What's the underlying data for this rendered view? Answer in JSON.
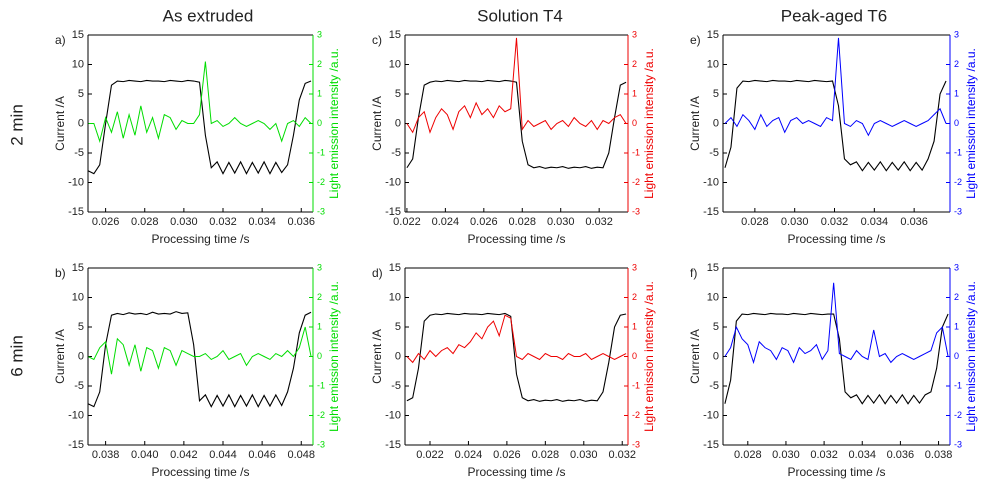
{
  "column_titles": [
    "As extruded",
    "Solution T4",
    "Peak-aged T6"
  ],
  "row_labels": [
    "2 min",
    "6 min"
  ],
  "chart_data": [
    {
      "type": "line",
      "label": "a)",
      "xlabel": "Processing time /s",
      "ylabel": "Current /A",
      "y2label": "Light emission intensity /a.u.",
      "x": [
        0.0251,
        0.0254,
        0.0257,
        0.026,
        0.0263,
        0.0266,
        0.0269,
        0.0272,
        0.0275,
        0.0278,
        0.0281,
        0.0284,
        0.0287,
        0.029,
        0.0293,
        0.0296,
        0.0299,
        0.0302,
        0.0305,
        0.0308,
        0.0311,
        0.0314,
        0.0317,
        0.032,
        0.0323,
        0.0326,
        0.0329,
        0.0332,
        0.0335,
        0.0338,
        0.0341,
        0.0344,
        0.0347,
        0.035,
        0.0353,
        0.0356,
        0.0359,
        0.0362,
        0.0365
      ],
      "series": [
        {
          "color": "#000000",
          "values": [
            -8,
            -8.5,
            -7,
            0,
            6.5,
            7.2,
            7.1,
            7.3,
            7.2,
            7.1,
            7.3,
            7.2,
            7.2,
            7.1,
            7.3,
            7.2,
            7.1,
            7.3,
            7.2,
            7,
            -2,
            -7.5,
            -6.5,
            -8.5,
            -6.6,
            -8.4,
            -6.5,
            -8.5,
            -6.6,
            -8.4,
            -6.5,
            -8.5,
            -6.6,
            -8.3,
            -7,
            -2,
            4,
            6.8,
            7.2
          ]
        },
        {
          "color": "#00dd00",
          "axis": "y2",
          "values": [
            0,
            0,
            -0.6,
            0.2,
            -0.3,
            0.4,
            -0.5,
            0.3,
            -0.4,
            0.6,
            -0.3,
            0.2,
            -0.5,
            0.3,
            0.2,
            -0.2,
            0.1,
            0,
            0,
            0.3,
            2.1,
            0,
            0.1,
            -0.1,
            0,
            0.2,
            0,
            -0.1,
            0,
            0.1,
            0,
            -0.2,
            0,
            -0.6,
            0,
            0.1,
            -0.1,
            0.2,
            0
          ]
        }
      ],
      "xlim": [
        0.0251,
        0.0366
      ],
      "xticks": [
        0.026,
        0.028,
        {
          "value": 0.03,
          "label": "0.030"
        },
        0.032,
        0.034,
        0.036
      ],
      "ylim": [
        -15,
        15
      ],
      "yticks": [
        -15,
        -10,
        -5,
        0,
        5,
        10,
        15
      ],
      "y2lim": [
        -3,
        3
      ],
      "y2ticks": [
        -3,
        -2,
        -1,
        0,
        1,
        2,
        3
      ]
    },
    {
      "type": "line",
      "label": "c)",
      "xlabel": "Processing time /s",
      "ylabel": "Current /A",
      "y2label": "Light emission intensity /a.u.",
      "x": [
        0.022,
        0.0223,
        0.0226,
        0.0229,
        0.0232,
        0.0235,
        0.0238,
        0.0241,
        0.0244,
        0.0247,
        0.025,
        0.0253,
        0.0256,
        0.0259,
        0.0262,
        0.0265,
        0.0268,
        0.0271,
        0.0274,
        0.0277,
        0.028,
        0.0283,
        0.0286,
        0.0289,
        0.0292,
        0.0295,
        0.0298,
        0.0301,
        0.0304,
        0.0307,
        0.031,
        0.0313,
        0.0316,
        0.0319,
        0.0322,
        0.0325,
        0.0328,
        0.0331,
        0.0334
      ],
      "series": [
        {
          "color": "#000000",
          "values": [
            -7.5,
            -6,
            1,
            6.5,
            7,
            7.2,
            7.1,
            7.3,
            7.2,
            7.1,
            7.3,
            7.2,
            7.2,
            7.1,
            7.3,
            7.2,
            7.1,
            7.3,
            7.2,
            7,
            -3,
            -7,
            -7.5,
            -7.3,
            -7.6,
            -7.4,
            -7.5,
            -7.3,
            -7.6,
            -7.4,
            -7.5,
            -7.3,
            -7.6,
            -7.4,
            -7.5,
            -5,
            1,
            6.5,
            7
          ]
        },
        {
          "color": "#ee0000",
          "axis": "y2",
          "values": [
            0,
            -0.3,
            0.2,
            0.4,
            -0.3,
            0.2,
            0.5,
            0.3,
            -0.2,
            0.4,
            0.6,
            0.2,
            0.7,
            0.3,
            0.5,
            0.2,
            0.6,
            0.4,
            0.5,
            2.9,
            -0.2,
            0.1,
            -0.1,
            0,
            0.1,
            -0.2,
            0,
            0.1,
            -0.1,
            0.2,
            0,
            -0.1,
            0.1,
            -0.2,
            0.1,
            0,
            0.2,
            0.3,
            0
          ]
        }
      ],
      "xlim": [
        0.0219,
        0.0335
      ],
      "xticks": [
        0.022,
        0.024,
        0.026,
        0.028,
        {
          "value": 0.03,
          "label": "0.030"
        },
        0.032
      ],
      "ylim": [
        -15,
        15
      ],
      "yticks": [
        -15,
        -10,
        -5,
        0,
        5,
        10,
        15
      ],
      "y2lim": [
        -3,
        3
      ],
      "y2ticks": [
        -3,
        -2,
        -1,
        0,
        1,
        2,
        3
      ]
    },
    {
      "type": "line",
      "label": "e)",
      "xlabel": "Processing time /s",
      "ylabel": "Current /A",
      "y2label": "Light emission intensity /a.u.",
      "x": [
        0.0265,
        0.0268,
        0.0271,
        0.0274,
        0.0277,
        0.028,
        0.0283,
        0.0286,
        0.0289,
        0.0292,
        0.0295,
        0.0298,
        0.0301,
        0.0304,
        0.0307,
        0.031,
        0.0313,
        0.0316,
        0.0319,
        0.0322,
        0.0325,
        0.0328,
        0.0331,
        0.0334,
        0.0337,
        0.034,
        0.0343,
        0.0346,
        0.0349,
        0.0352,
        0.0355,
        0.0358,
        0.0361,
        0.0364,
        0.0367,
        0.037,
        0.0373,
        0.0376
      ],
      "series": [
        {
          "color": "#000000",
          "values": [
            -7.5,
            -4,
            6,
            7.2,
            7.1,
            7.3,
            7.2,
            7.1,
            7.3,
            7.2,
            7.2,
            7.1,
            7.3,
            7.2,
            7.1,
            7.3,
            7.2,
            7.1,
            7.2,
            3,
            -6,
            -7,
            -6.5,
            -8,
            -6.6,
            -7.9,
            -6.5,
            -8,
            -6.6,
            -7.9,
            -6.5,
            -8,
            -6.6,
            -7.9,
            -6,
            -3,
            5,
            7.2
          ]
        },
        {
          "color": "#0000ff",
          "axis": "y2",
          "values": [
            0,
            0.2,
            -0.1,
            0.3,
            0.1,
            -0.2,
            0.3,
            -0.1,
            0.1,
            0.2,
            -0.3,
            0.1,
            0.2,
            0,
            0.1,
            0,
            -0.1,
            0.2,
            0.1,
            2.9,
            0,
            -0.1,
            0.1,
            0,
            -0.4,
            0,
            0.1,
            0,
            -0.1,
            0,
            0.1,
            0,
            -0.1,
            0,
            0.1,
            0.3,
            0.5,
            0
          ]
        }
      ],
      "xlim": [
        0.0264,
        0.0378
      ],
      "xticks": [
        0.028,
        {
          "value": 0.03,
          "label": "0.030"
        },
        0.032,
        0.034,
        0.036
      ],
      "ylim": [
        -15,
        15
      ],
      "yticks": [
        -15,
        -10,
        -5,
        0,
        5,
        10,
        15
      ],
      "y2lim": [
        -3,
        3
      ],
      "y2ticks": [
        -3,
        -2,
        -1,
        0,
        1,
        2,
        3
      ]
    },
    {
      "type": "line",
      "label": "b)",
      "xlabel": "Processing time /s",
      "ylabel": "Current /A",
      "y2label": "Light emission intensity /a.u.",
      "x": [
        0.0371,
        0.0374,
        0.0377,
        0.038,
        0.0383,
        0.0386,
        0.0389,
        0.0392,
        0.0395,
        0.0398,
        0.0401,
        0.0404,
        0.0407,
        0.041,
        0.0413,
        0.0416,
        0.0419,
        0.0422,
        0.0425,
        0.0428,
        0.0431,
        0.0434,
        0.0437,
        0.044,
        0.0443,
        0.0446,
        0.0449,
        0.0452,
        0.0455,
        0.0458,
        0.0461,
        0.0464,
        0.0467,
        0.047,
        0.0473,
        0.0476,
        0.0479,
        0.0482,
        0.0485
      ],
      "series": [
        {
          "color": "#000000",
          "values": [
            -8,
            -8.5,
            -6,
            2,
            7,
            7.3,
            7.1,
            7.4,
            7.2,
            7.3,
            7.1,
            7.5,
            7.2,
            7.3,
            7.2,
            7.6,
            7.3,
            7.4,
            2,
            -7.5,
            -6.5,
            -8.5,
            -6.6,
            -8.4,
            -6.5,
            -8.5,
            -6.6,
            -8.4,
            -6.5,
            -8.5,
            -6.6,
            -8.4,
            -6.5,
            -8.3,
            -6,
            -2,
            4,
            7,
            7.5
          ]
        },
        {
          "color": "#00dd00",
          "axis": "y2",
          "values": [
            0,
            -0.1,
            0.3,
            0.5,
            -0.6,
            0.6,
            0.4,
            -0.3,
            0.4,
            -0.5,
            0.3,
            0.2,
            -0.4,
            0.3,
            0.2,
            -0.3,
            0.2,
            0.1,
            0,
            0,
            0.1,
            -0.1,
            0,
            0.2,
            -0.1,
            0,
            0.1,
            -0.3,
            0,
            0.1,
            0,
            -0.1,
            0.1,
            0,
            0.2,
            0,
            0.3,
            1,
            0
          ]
        }
      ],
      "xlim": [
        0.0371,
        0.0486
      ],
      "xticks": [
        0.038,
        {
          "value": 0.04,
          "label": "0.040"
        },
        0.042,
        0.044,
        0.046,
        0.048
      ],
      "ylim": [
        -15,
        15
      ],
      "yticks": [
        -15,
        -10,
        -5,
        0,
        5,
        10,
        15
      ],
      "y2lim": [
        -3,
        3
      ],
      "y2ticks": [
        -3,
        -2,
        -1,
        0,
        1,
        2,
        3
      ]
    },
    {
      "type": "line",
      "label": "d)",
      "xlabel": "Processing time /s",
      "ylabel": "Current /A",
      "y2label": "Light emission intensity /a.u.",
      "x": [
        0.0208,
        0.0211,
        0.0214,
        0.0217,
        0.022,
        0.0223,
        0.0226,
        0.0229,
        0.0232,
        0.0235,
        0.0238,
        0.0241,
        0.0244,
        0.0247,
        0.025,
        0.0253,
        0.0256,
        0.0259,
        0.0262,
        0.0265,
        0.0268,
        0.0271,
        0.0274,
        0.0277,
        0.028,
        0.0283,
        0.0286,
        0.0289,
        0.0292,
        0.0295,
        0.0298,
        0.0301,
        0.0304,
        0.0307,
        0.031,
        0.0313,
        0.0316,
        0.0319,
        0.0322
      ],
      "series": [
        {
          "color": "#000000",
          "values": [
            -7.5,
            -7,
            -2,
            6,
            7,
            7.2,
            7.1,
            7.3,
            7.2,
            7.1,
            7.3,
            7.2,
            7.2,
            7.1,
            7.3,
            7.2,
            7.1,
            7.3,
            6.8,
            -3,
            -7,
            -7.5,
            -7.3,
            -7.6,
            -7.4,
            -7.5,
            -7.3,
            -7.6,
            -7.4,
            -7.5,
            -7.3,
            -7.6,
            -7.4,
            -7.5,
            -6,
            -1,
            5,
            7,
            7.2
          ]
        },
        {
          "color": "#ee0000",
          "axis": "y2",
          "values": [
            0,
            -0.2,
            0.1,
            -0.1,
            0.2,
            0,
            0.2,
            0.3,
            0.1,
            0.4,
            0.3,
            0.5,
            0.8,
            0.6,
            1,
            1.2,
            0.7,
            1.4,
            1.3,
            0,
            -0.1,
            0.1,
            0,
            -0.1,
            0.1,
            0,
            0,
            -0.1,
            0.1,
            0,
            0,
            0.1,
            -0.1,
            0,
            0.1,
            0,
            -0.1,
            0,
            0.1
          ]
        }
      ],
      "xlim": [
        0.0207,
        0.0323
      ],
      "xticks": [
        0.022,
        0.024,
        0.026,
        0.028,
        {
          "value": 0.03,
          "label": "0.030"
        },
        0.032
      ],
      "ylim": [
        -15,
        15
      ],
      "yticks": [
        -15,
        -10,
        -5,
        0,
        5,
        10,
        15
      ],
      "y2lim": [
        -3,
        3
      ],
      "y2ticks": [
        -3,
        -2,
        -1,
        0,
        1,
        2,
        3
      ]
    },
    {
      "type": "line",
      "label": "f)",
      "xlabel": "Processing time /s",
      "ylabel": "Current /A",
      "y2label": "Light emission intensity /a.u.",
      "x": [
        0.0268,
        0.0271,
        0.0274,
        0.0277,
        0.028,
        0.0283,
        0.0286,
        0.0289,
        0.0292,
        0.0295,
        0.0298,
        0.0301,
        0.0304,
        0.0307,
        0.031,
        0.0313,
        0.0316,
        0.0319,
        0.0322,
        0.0325,
        0.0328,
        0.0331,
        0.0334,
        0.0337,
        0.034,
        0.0343,
        0.0346,
        0.0349,
        0.0352,
        0.0355,
        0.0358,
        0.0361,
        0.0364,
        0.0367,
        0.037,
        0.0373,
        0.0376,
        0.0379,
        0.0382,
        0.0385
      ],
      "series": [
        {
          "color": "#000000",
          "values": [
            -8,
            -4,
            6,
            7.2,
            7.1,
            7.3,
            7.2,
            7.1,
            7.3,
            7.2,
            7.2,
            7.1,
            7.3,
            7.2,
            7.1,
            7.3,
            7.2,
            7.1,
            7.2,
            7.2,
            3,
            -6,
            -7,
            -6.5,
            -8,
            -6.6,
            -7.9,
            -6.5,
            -8,
            -6.6,
            -7.9,
            -6.5,
            -8,
            -6.6,
            -7.9,
            -6.5,
            -6,
            -2,
            5,
            7.2
          ]
        },
        {
          "color": "#0000ff",
          "axis": "y2",
          "values": [
            0,
            0.3,
            1,
            0.6,
            0.4,
            -0.2,
            0.5,
            0.3,
            0.2,
            -0.1,
            0.3,
            0.2,
            -0.2,
            0.3,
            0.1,
            0.2,
            0.4,
            -0.1,
            0.2,
            2.5,
            0.1,
            0,
            -0.1,
            0.2,
            0,
            -0.1,
            0.9,
            0,
            0.1,
            -0.2,
            0,
            0.1,
            0,
            -0.1,
            0,
            0.1,
            0.2,
            0.8,
            1,
            0
          ]
        }
      ],
      "xlim": [
        0.0267,
        0.0386
      ],
      "xticks": [
        0.028,
        {
          "value": 0.03,
          "label": "0.030"
        },
        0.032,
        0.034,
        0.036,
        0.038
      ],
      "ylim": [
        -15,
        15
      ],
      "yticks": [
        -15,
        -10,
        -5,
        0,
        5,
        10,
        15
      ],
      "y2lim": [
        -3,
        3
      ],
      "y2ticks": [
        -3,
        -2,
        -1,
        0,
        1,
        2,
        3
      ]
    }
  ]
}
